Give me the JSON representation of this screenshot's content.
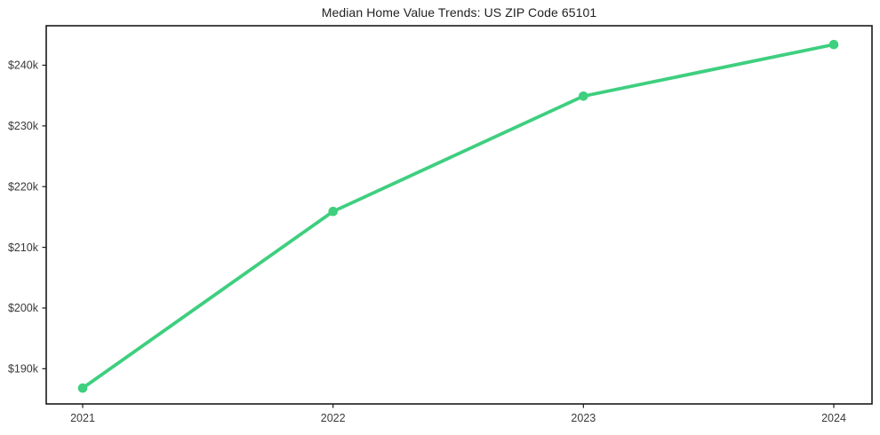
{
  "chart_data": {
    "type": "line",
    "title": "Median Home Value Trends: US ZIP Code 65101",
    "xlabel": "",
    "ylabel": "",
    "categories": [
      "2021",
      "2022",
      "2023",
      "2024"
    ],
    "series": [
      {
        "name": "Median Home Value",
        "values": [
          186800,
          215900,
          234900,
          243400
        ]
      }
    ],
    "y_ticks": [
      190000,
      200000,
      210000,
      220000,
      230000,
      240000
    ],
    "y_tick_labels": [
      "$190k",
      "$200k",
      "$210k",
      "$220k",
      "$230k",
      "$240k"
    ],
    "ylim": [
      184200,
      246500
    ],
    "grid": false,
    "legend_position": "none",
    "line_color": "#3ecf7f",
    "marker_color": "#3ecf7f",
    "axis_color": "#1a1a1a",
    "tick_label_color": "#3a3a3a",
    "background_color": "#ffffff"
  }
}
